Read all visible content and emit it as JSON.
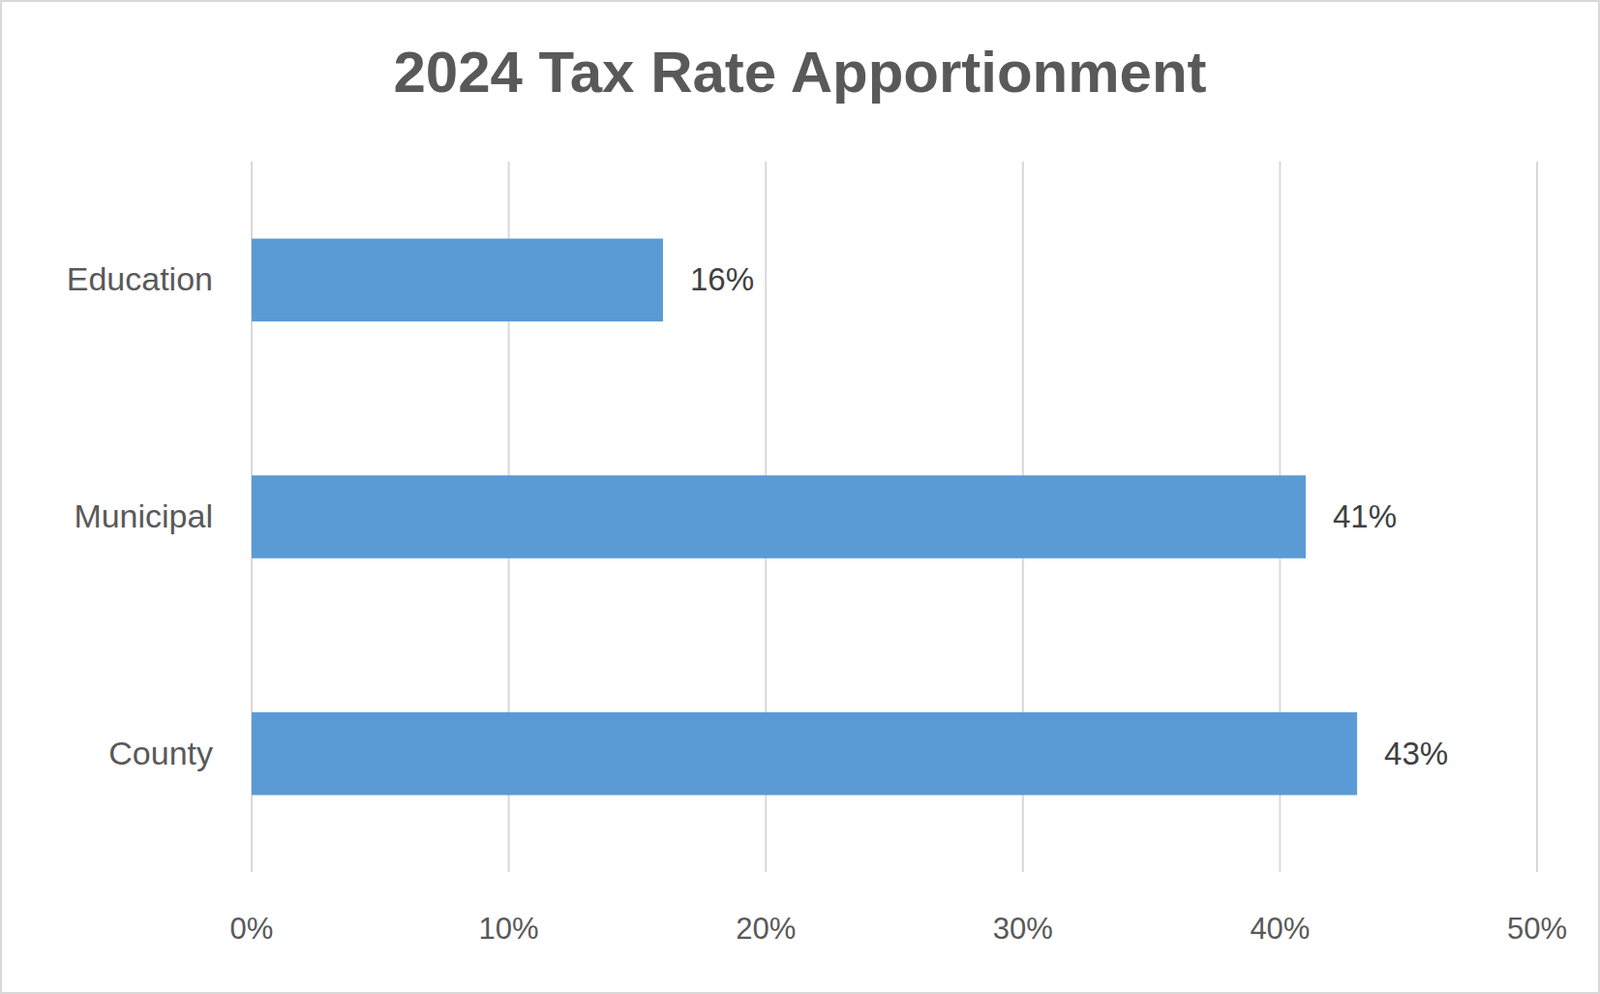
{
  "chart_data": {
    "type": "bar",
    "orientation": "horizontal",
    "title": "2024 Tax Rate Apportionment",
    "categories": [
      "Education",
      "Municipal",
      "County"
    ],
    "values": [
      16,
      41,
      43
    ],
    "value_labels": [
      "16%",
      "41%",
      "43%"
    ],
    "color": "#5b9bd5",
    "xlim": [
      0,
      50
    ],
    "xticks": [
      {
        "value": 0,
        "label": "0%"
      },
      {
        "value": 10,
        "label": "10%"
      },
      {
        "value": 20,
        "label": "20%"
      },
      {
        "value": 30,
        "label": "30%"
      },
      {
        "value": 40,
        "label": "40%"
      },
      {
        "value": 50,
        "label": "50%"
      }
    ],
    "grid": true,
    "data_labels": true
  }
}
